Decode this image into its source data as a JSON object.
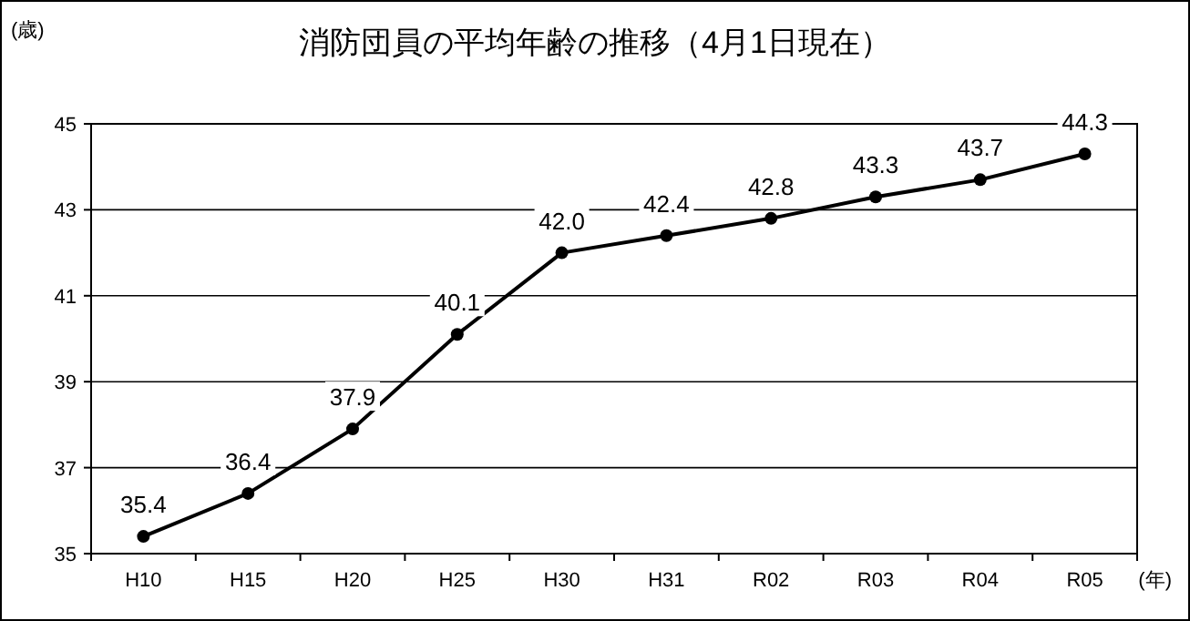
{
  "chart_data": {
    "type": "line",
    "title": "消防団員の平均年齢の推移（4月1日現在）",
    "ylabel": "(歳)",
    "xlabel": "(年)",
    "categories": [
      "H10",
      "H15",
      "H20",
      "H25",
      "H30",
      "H31",
      "R02",
      "R03",
      "R04",
      "R05"
    ],
    "series": [
      {
        "color": "#000000",
        "values": [
          35.4,
          36.4,
          37.9,
          40.1,
          42.0,
          42.4,
          42.8,
          43.3,
          43.7,
          44.3
        ],
        "value_labels": [
          "35.4",
          "36.4",
          "37.9",
          "40.1",
          "42.0",
          "42.4",
          "42.8",
          "43.3",
          "43.7",
          "44.3"
        ]
      }
    ],
    "ylim": [
      35,
      45
    ],
    "yticks": [
      35,
      37,
      39,
      41,
      43,
      45
    ],
    "grid": "y",
    "marker": "circle",
    "line_style": "solid"
  }
}
